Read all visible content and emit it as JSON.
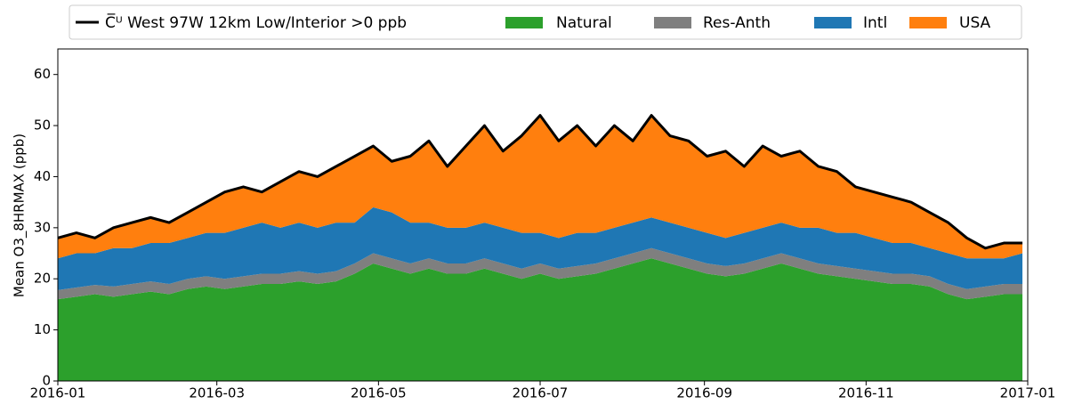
{
  "chart_data": {
    "type": "area",
    "stacked": true,
    "ylabel": "Mean O3_8HRMAX (ppb)",
    "x": [
      0,
      7,
      14,
      21,
      28,
      35,
      42,
      49,
      56,
      63,
      70,
      77,
      84,
      91,
      98,
      105,
      112,
      119,
      126,
      133,
      140,
      147,
      154,
      161,
      168,
      175,
      182,
      189,
      196,
      203,
      210,
      217,
      224,
      231,
      238,
      245,
      252,
      259,
      266,
      273,
      280,
      287,
      294,
      301,
      308,
      315,
      322,
      329,
      336,
      343,
      350,
      357,
      364
    ],
    "xlim": [
      0,
      366
    ],
    "xticks": [
      {
        "value": 0,
        "label": "2016-01"
      },
      {
        "value": 60,
        "label": "2016-03"
      },
      {
        "value": 121,
        "label": "2016-05"
      },
      {
        "value": 182,
        "label": "2016-07"
      },
      {
        "value": 244,
        "label": "2016-09"
      },
      {
        "value": 305,
        "label": "2016-11"
      },
      {
        "value": 366,
        "label": "2017-01"
      }
    ],
    "ylim": [
      0,
      65
    ],
    "yticks": [
      0,
      10,
      20,
      30,
      40,
      50,
      60
    ],
    "legend": "top",
    "series": [
      {
        "name": "C̅ᵁ West 97W 12km Low/Interior >0 ppb",
        "kind": "line",
        "color": "#000000",
        "values": [
          28,
          29,
          28,
          30,
          31,
          32,
          31,
          33,
          35,
          37,
          38,
          37,
          39,
          41,
          40,
          42,
          44,
          46,
          43,
          44,
          47,
          42,
          46,
          50,
          45,
          48,
          52,
          47,
          50,
          46,
          50,
          47,
          52,
          48,
          47,
          44,
          45,
          42,
          46,
          44,
          45,
          42,
          41,
          38,
          37,
          36,
          35,
          33,
          31,
          28,
          26,
          27,
          27
        ]
      },
      {
        "name": "Natural",
        "kind": "area",
        "color": "#2ca02c",
        "values": [
          16,
          16.5,
          17,
          16.5,
          17,
          17.5,
          17,
          18,
          18.5,
          18,
          18.5,
          19,
          19,
          19.5,
          19,
          19.5,
          21,
          23,
          22,
          21,
          22,
          21,
          21,
          22,
          21,
          20,
          21,
          20,
          20.5,
          21,
          22,
          23,
          24,
          23,
          22,
          21,
          20.5,
          21,
          22,
          23,
          22,
          21,
          20.5,
          20,
          19.5,
          19,
          19,
          18.5,
          17,
          16,
          16.5,
          17,
          17
        ]
      },
      {
        "name": "Res-Anth",
        "kind": "area",
        "color": "#7f7f7f",
        "values": [
          1.8,
          1.8,
          1.8,
          2,
          2,
          2,
          2,
          2,
          2,
          2,
          2,
          2,
          2,
          2,
          2,
          2,
          2,
          2,
          2,
          2,
          2,
          2,
          2,
          2,
          2,
          2,
          2,
          2,
          2,
          2,
          2,
          2,
          2,
          2,
          2,
          2,
          2,
          2,
          2,
          2,
          2,
          2,
          2,
          2,
          2,
          2,
          2,
          2,
          2,
          2,
          2,
          2,
          2
        ]
      },
      {
        "name": "Intl",
        "kind": "area",
        "color": "#1f77b4",
        "values": [
          6.2,
          6.7,
          6.2,
          7.5,
          7,
          7.5,
          8,
          8,
          8.5,
          9,
          9.5,
          10,
          9,
          9.5,
          9,
          9.5,
          8,
          9,
          9,
          8,
          7,
          7,
          7,
          7,
          7,
          7,
          6,
          6,
          6.5,
          6,
          6,
          6,
          6,
          6,
          6,
          6,
          5.5,
          6,
          6,
          6,
          6,
          7,
          6.5,
          7,
          6.5,
          6,
          6,
          5.5,
          6,
          6,
          5.5,
          5,
          6
        ]
      },
      {
        "name": "USA",
        "kind": "area",
        "color": "#ff7f0e",
        "values": [
          4,
          4,
          3,
          4,
          5,
          5,
          4,
          5,
          6,
          8,
          8,
          6,
          9,
          10,
          10,
          11,
          13,
          12,
          10,
          13,
          16,
          12,
          16,
          19,
          15,
          19,
          23,
          19,
          21,
          17,
          20,
          16,
          20,
          17,
          17,
          15,
          17,
          13,
          16,
          13,
          15,
          12,
          12,
          9,
          9,
          9,
          8,
          7,
          6,
          4,
          2,
          3,
          2
        ]
      }
    ]
  }
}
